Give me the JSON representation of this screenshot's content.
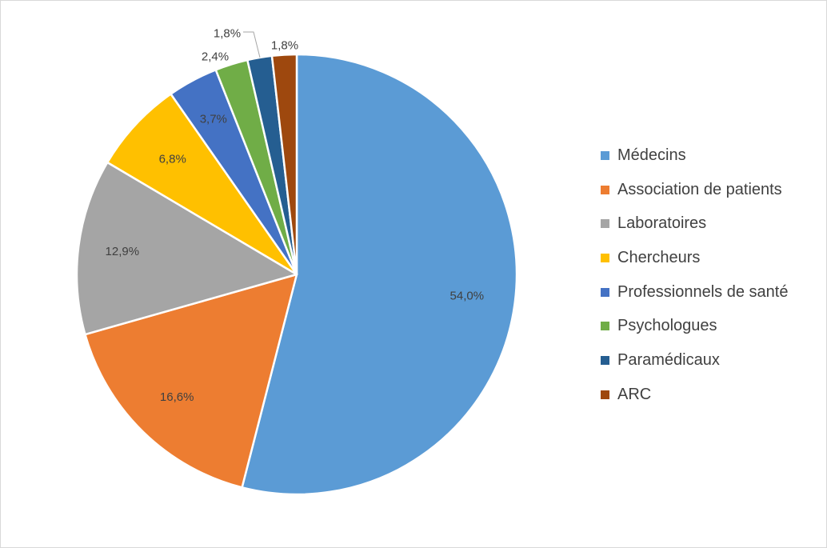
{
  "chart_data": {
    "type": "pie",
    "title": "",
    "start_angle_deg": 0,
    "direction": "clockwise",
    "slices": [
      {
        "label": "Médecins",
        "value": 54.0,
        "display": "54,0%",
        "color": "#5B9BD5"
      },
      {
        "label": "Association de patients",
        "value": 16.6,
        "display": "16,6%",
        "color": "#ED7D31"
      },
      {
        "label": "Laboratoires",
        "value": 12.9,
        "display": "12,9%",
        "color": "#A5A5A5"
      },
      {
        "label": "Chercheurs",
        "value": 6.8,
        "display": "6,8%",
        "color": "#FFC000"
      },
      {
        "label": "Professionnels de santé",
        "value": 3.7,
        "display": "3,7%",
        "color": "#4472C4"
      },
      {
        "label": "Psychologues",
        "value": 2.4,
        "display": "2,4%",
        "color": "#70AD47"
      },
      {
        "label": "Paramédicaux",
        "value": 1.8,
        "display": "1,8%",
        "color": "#255E91"
      },
      {
        "label": "ARC",
        "value": 1.8,
        "display": "1,8%",
        "color": "#9E480E"
      }
    ],
    "legend_position": "right",
    "data_labels": "inside, with outside callouts for the smallest slices"
  }
}
